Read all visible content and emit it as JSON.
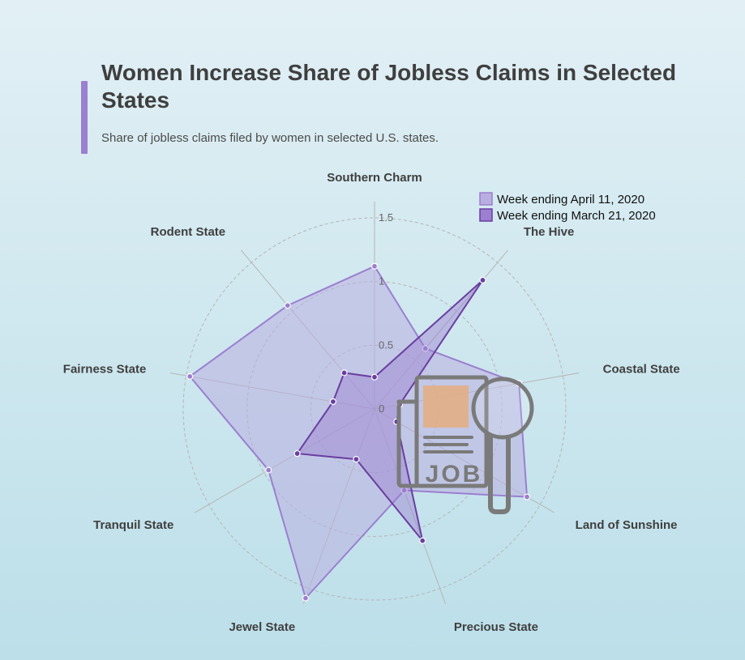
{
  "header": {
    "title": "Women Increase Share of Jobless Claims in Selected States",
    "subtitle": "Share of jobless claims filed by women in selected U.S. states."
  },
  "colors": {
    "accent": "#9b7fd0",
    "april_fill": "#b9aee0",
    "april_stroke": "#9b7fd0",
    "march_fill": "#9b7fd0",
    "march_stroke": "#6a3fa0",
    "icon": "#7a7a7a",
    "icon_box": "#e5ad7f"
  },
  "icon": {
    "name": "job-newspaper-magnifier-icon",
    "text": "JOB"
  },
  "chart_data": {
    "type": "radar",
    "axes": [
      "Southern Charm",
      "The Hive",
      "Coastal State",
      "Land of Sunshine",
      "Precious State",
      "Jewel State",
      "Tranquil State",
      "Fairness State",
      "Rodent State"
    ],
    "rlim": [
      0,
      1.5
    ],
    "ticks": [
      "0",
      "0.5",
      "1",
      "1.5"
    ],
    "tick_values": [
      0,
      0.5,
      1,
      1.5
    ],
    "grid": true,
    "legend_position": "top-right",
    "series": [
      {
        "name": "Week ending April 11, 2020",
        "values": [
          1.12,
          0.62,
          1.15,
          1.38,
          0.68,
          1.58,
          0.96,
          1.47,
          1.06
        ]
      },
      {
        "name": "Week ending March 21, 2020",
        "values": [
          0.25,
          1.32,
          0.2,
          0.2,
          1.1,
          0.42,
          0.7,
          0.33,
          0.37
        ]
      }
    ]
  }
}
